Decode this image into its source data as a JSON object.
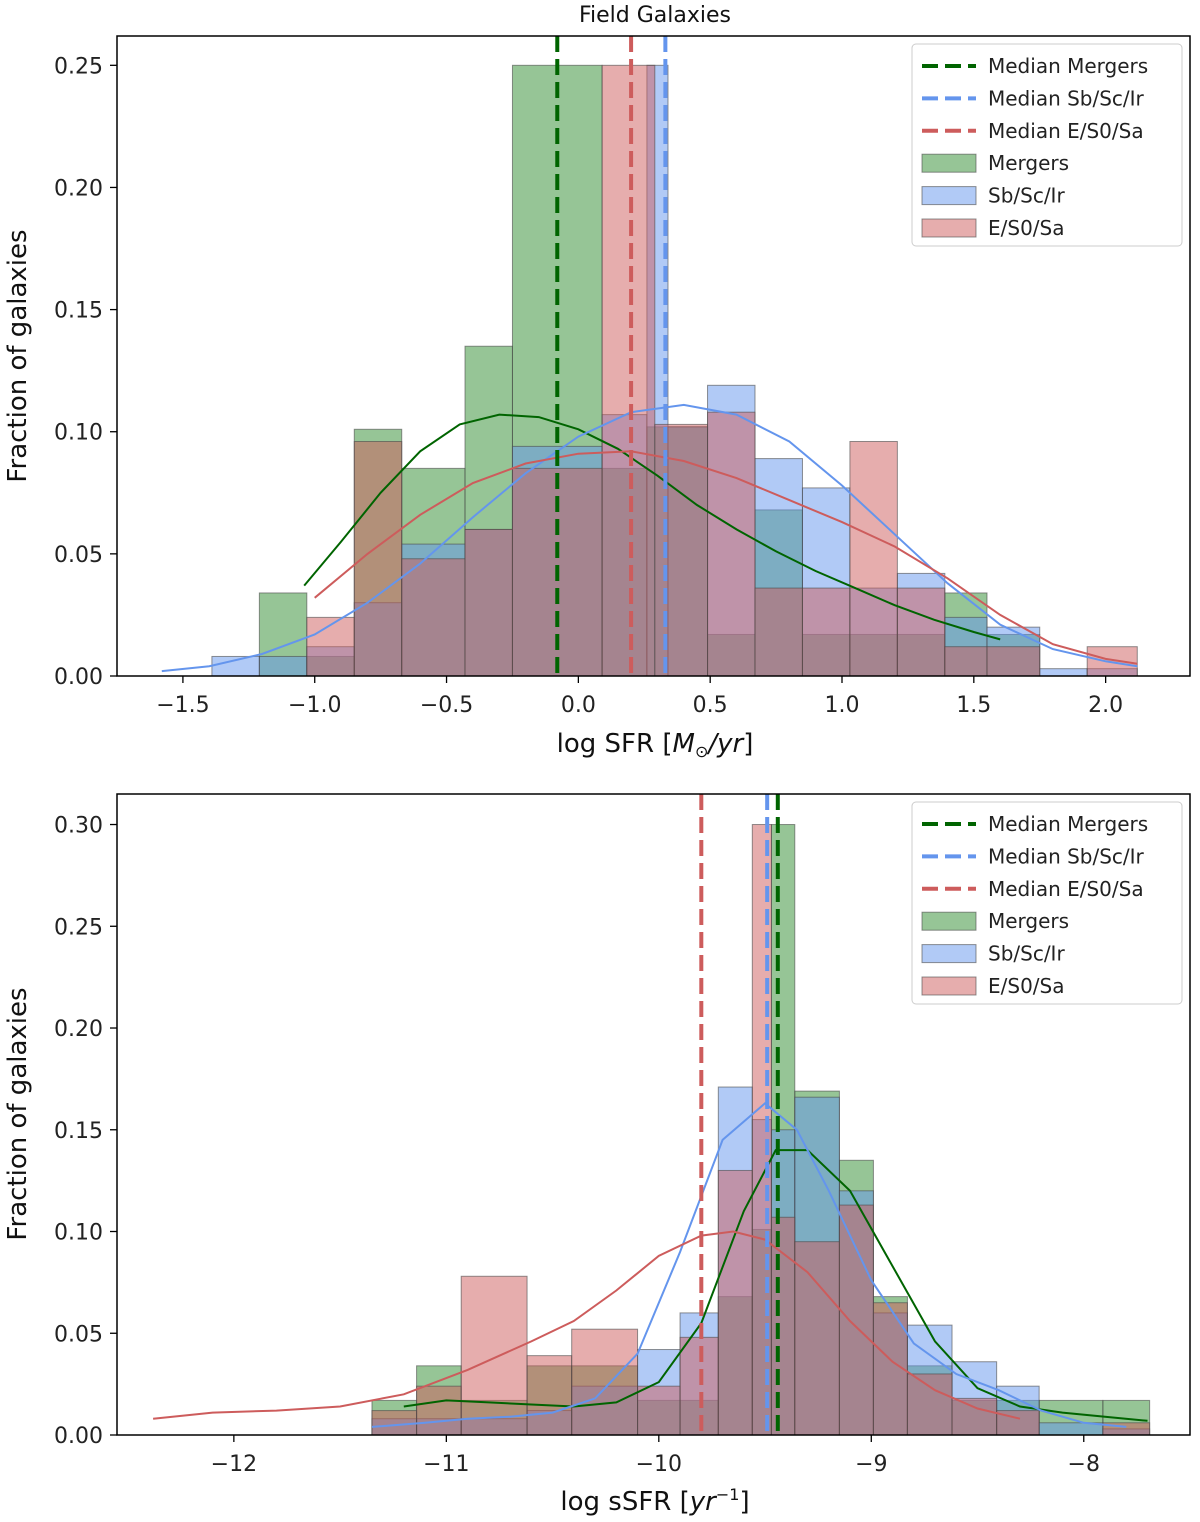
{
  "figure_title": "Field Galaxies",
  "colors": {
    "mergers_fill": "#2e8b2e",
    "mergers_line": "#006400",
    "sb_fill": "#6495ed",
    "sb_line": "#6495ed",
    "es0_fill": "#cd5c5c",
    "es0_line": "#cd5c5c",
    "bar_edge": "#4a4a4a"
  },
  "legend_labels": [
    "Median Mergers",
    "Median Sb/Sc/Ir",
    "Median E/S0/Sa",
    "Mergers",
    "Sb/Sc/Ir",
    "E/S0/Sa"
  ],
  "chart_data": [
    {
      "type": "bar",
      "title": "Field Galaxies",
      "xlabel": "log SFR [M_⊙/yr]",
      "ylabel": "Fraction of galaxies",
      "xlim": [
        -1.75,
        2.32
      ],
      "ylim": [
        0,
        0.262
      ],
      "xticks": [
        -1.5,
        -1.0,
        -0.5,
        0.0,
        0.5,
        1.0,
        1.5,
        2.0
      ],
      "xtick_labels": [
        "−1.5",
        "−1.0",
        "−0.5",
        "0.0",
        "0.5",
        "1.0",
        "1.5",
        "2.0"
      ],
      "yticks": [
        0.0,
        0.05,
        0.1,
        0.15,
        0.2,
        0.25
      ],
      "ytick_labels": [
        "0.00",
        "0.05",
        "0.10",
        "0.15",
        "0.20",
        "0.25"
      ],
      "legend_position": "upper right",
      "series": [
        {
          "name": "Mergers",
          "color_key": "mergers",
          "bins": [
            [
              -1.21,
              -1.03,
              0.034
            ],
            [
              -1.03,
              -0.85,
              0.008
            ],
            [
              -0.85,
              -0.67,
              0.101
            ],
            [
              -0.67,
              -0.43,
              0.085
            ],
            [
              -0.43,
              -0.25,
              0.135
            ],
            [
              -0.25,
              0.09,
              0.25
            ],
            [
              0.09,
              0.26,
              0.085
            ],
            [
              0.26,
              0.49,
              0.102
            ],
            [
              0.49,
              0.67,
              0.017
            ],
            [
              0.67,
              0.85,
              0.068
            ],
            [
              0.85,
              1.03,
              0.017
            ],
            [
              1.03,
              1.21,
              0.017
            ],
            [
              1.21,
              1.39,
              0.017
            ],
            [
              1.39,
              1.55,
              0.034
            ],
            [
              1.55,
              1.75,
              0.017
            ]
          ],
          "kde_x": [
            -1.04,
            -0.9,
            -0.75,
            -0.6,
            -0.45,
            -0.3,
            -0.15,
            0.0,
            0.15,
            0.3,
            0.45,
            0.6,
            0.75,
            0.9,
            1.05,
            1.2,
            1.35,
            1.5,
            1.6
          ],
          "kde_y": [
            0.037,
            0.055,
            0.075,
            0.092,
            0.103,
            0.107,
            0.106,
            0.101,
            0.093,
            0.082,
            0.07,
            0.06,
            0.051,
            0.043,
            0.036,
            0.029,
            0.023,
            0.018,
            0.015
          ],
          "median": -0.08
        },
        {
          "name": "Sb/Sc/Ir",
          "color_key": "sb",
          "bins": [
            [
              -1.39,
              -1.21,
              0.008
            ],
            [
              -1.21,
              -1.03,
              0.008
            ],
            [
              -1.03,
              -0.85,
              0.012
            ],
            [
              -0.85,
              -0.67,
              0.03
            ],
            [
              -0.67,
              -0.43,
              0.054
            ],
            [
              -0.43,
              -0.25,
              0.06
            ],
            [
              -0.25,
              0.09,
              0.094
            ],
            [
              0.09,
              0.26,
              0.107
            ],
            [
              0.26,
              0.34,
              0.25
            ],
            [
              0.34,
              0.49,
              0.102
            ],
            [
              0.49,
              0.67,
              0.119
            ],
            [
              0.67,
              0.85,
              0.089
            ],
            [
              0.85,
              1.03,
              0.077
            ],
            [
              1.03,
              1.21,
              0.036
            ],
            [
              1.21,
              1.39,
              0.042
            ],
            [
              1.39,
              1.55,
              0.024
            ],
            [
              1.55,
              1.75,
              0.02
            ],
            [
              1.75,
              1.93,
              0.003
            ],
            [
              1.93,
              2.12,
              0.003
            ]
          ],
          "kde_x": [
            -1.58,
            -1.4,
            -1.2,
            -1.0,
            -0.8,
            -0.6,
            -0.4,
            -0.2,
            0.0,
            0.2,
            0.4,
            0.6,
            0.8,
            1.0,
            1.2,
            1.4,
            1.6,
            1.8,
            2.0,
            2.12
          ],
          "kde_y": [
            0.002,
            0.004,
            0.009,
            0.017,
            0.03,
            0.046,
            0.065,
            0.083,
            0.098,
            0.108,
            0.111,
            0.107,
            0.096,
            0.078,
            0.058,
            0.038,
            0.021,
            0.011,
            0.006,
            0.004
          ],
          "median": 0.33
        },
        {
          "name": "E/S0/Sa",
          "color_key": "es0",
          "bins": [
            [
              -1.03,
              -0.85,
              0.024
            ],
            [
              -0.85,
              -0.67,
              0.096
            ],
            [
              -0.67,
              -0.43,
              0.048
            ],
            [
              -0.43,
              -0.25,
              0.06
            ],
            [
              -0.25,
              0.09,
              0.085
            ],
            [
              0.09,
              0.29,
              0.25
            ],
            [
              0.29,
              0.49,
              0.103
            ],
            [
              0.49,
              0.67,
              0.108
            ],
            [
              0.67,
              0.85,
              0.036
            ],
            [
              0.85,
              1.03,
              0.036
            ],
            [
              1.03,
              1.21,
              0.096
            ],
            [
              1.21,
              1.39,
              0.036
            ],
            [
              1.39,
              1.55,
              0.012
            ],
            [
              1.55,
              1.75,
              0.012
            ],
            [
              1.93,
              2.12,
              0.012
            ]
          ],
          "kde_x": [
            -1.0,
            -0.8,
            -0.6,
            -0.4,
            -0.2,
            0.0,
            0.2,
            0.4,
            0.6,
            0.8,
            1.0,
            1.2,
            1.4,
            1.6,
            1.8,
            2.0,
            2.12
          ],
          "kde_y": [
            0.032,
            0.05,
            0.066,
            0.079,
            0.087,
            0.091,
            0.092,
            0.088,
            0.081,
            0.072,
            0.063,
            0.053,
            0.04,
            0.025,
            0.013,
            0.007,
            0.005
          ],
          "median": 0.2
        }
      ]
    },
    {
      "type": "bar",
      "title": "",
      "xlabel": "log sSFR [yr⁻¹]",
      "ylabel": "Fraction of galaxies",
      "xlim": [
        -12.55,
        -7.5
      ],
      "ylim": [
        0,
        0.315
      ],
      "xticks": [
        -12,
        -11,
        -10,
        -9,
        -8
      ],
      "xtick_labels": [
        "−12",
        "−11",
        "−10",
        "−9",
        "−8"
      ],
      "yticks": [
        0.0,
        0.05,
        0.1,
        0.15,
        0.2,
        0.25,
        0.3
      ],
      "ytick_labels": [
        "0.00",
        "0.05",
        "0.10",
        "0.15",
        "0.20",
        "0.25",
        "0.30"
      ],
      "legend_position": "upper right",
      "series": [
        {
          "name": "Mergers",
          "color_key": "mergers",
          "bins": [
            [
              -11.35,
              -11.14,
              0.017
            ],
            [
              -11.14,
              -10.93,
              0.034
            ],
            [
              -10.93,
              -10.62,
              0.017
            ],
            [
              -10.62,
              -10.41,
              0.034
            ],
            [
              -10.41,
              -10.1,
              0.034
            ],
            [
              -10.1,
              -9.9,
              0.017
            ],
            [
              -9.9,
              -9.72,
              0.017
            ],
            [
              -9.72,
              -9.56,
              0.068
            ],
            [
              -9.56,
              -9.47,
              0.101
            ],
            [
              -9.47,
              -9.36,
              0.3
            ],
            [
              -9.36,
              -9.15,
              0.169
            ],
            [
              -9.15,
              -8.99,
              0.135
            ],
            [
              -8.99,
              -8.83,
              0.068
            ],
            [
              -8.83,
              -8.62,
              0.034
            ],
            [
              -8.62,
              -8.41,
              0.017
            ],
            [
              -8.41,
              -8.21,
              0.017
            ],
            [
              -8.21,
              -7.91,
              0.017
            ],
            [
              -7.91,
              -7.69,
              0.017
            ]
          ],
          "kde_x": [
            -11.2,
            -11.0,
            -10.8,
            -10.6,
            -10.4,
            -10.2,
            -10.0,
            -9.8,
            -9.6,
            -9.45,
            -9.3,
            -9.1,
            -8.9,
            -8.7,
            -8.5,
            -8.3,
            -8.1,
            -7.9,
            -7.7
          ],
          "kde_y": [
            0.014,
            0.017,
            0.016,
            0.015,
            0.014,
            0.016,
            0.026,
            0.055,
            0.11,
            0.14,
            0.14,
            0.12,
            0.083,
            0.046,
            0.023,
            0.014,
            0.011,
            0.009,
            0.007
          ],
          "median": -9.44
        },
        {
          "name": "Sb/Sc/Ir",
          "color_key": "sb",
          "bins": [
            [
              -11.35,
              -11.14,
              0.008
            ],
            [
              -11.14,
              -10.93,
              0.008
            ],
            [
              -10.93,
              -10.62,
              0.008
            ],
            [
              -10.62,
              -10.41,
              0.012
            ],
            [
              -10.41,
              -10.1,
              0.024
            ],
            [
              -10.1,
              -9.9,
              0.042
            ],
            [
              -9.9,
              -9.72,
              0.06
            ],
            [
              -9.72,
              -9.56,
              0.171
            ],
            [
              -9.56,
              -9.47,
              0.155
            ],
            [
              -9.47,
              -9.36,
              0.15
            ],
            [
              -9.36,
              -9.15,
              0.166
            ],
            [
              -9.15,
              -8.99,
              0.12
            ],
            [
              -8.99,
              -8.83,
              0.06
            ],
            [
              -8.83,
              -8.62,
              0.054
            ],
            [
              -8.62,
              -8.41,
              0.036
            ],
            [
              -8.41,
              -8.21,
              0.024
            ],
            [
              -8.21,
              -7.91,
              0.006
            ],
            [
              -7.91,
              -7.69,
              0.003
            ]
          ],
          "kde_x": [
            -11.35,
            -11.1,
            -10.9,
            -10.7,
            -10.5,
            -10.3,
            -10.1,
            -9.9,
            -9.7,
            -9.5,
            -9.35,
            -9.2,
            -9.0,
            -8.8,
            -8.6,
            -8.4,
            -8.2,
            -8.0,
            -7.8
          ],
          "kde_y": [
            0.004,
            0.006,
            0.008,
            0.009,
            0.011,
            0.018,
            0.04,
            0.09,
            0.145,
            0.163,
            0.15,
            0.12,
            0.076,
            0.045,
            0.03,
            0.022,
            0.012,
            0.006,
            0.004
          ],
          "median": -9.49
        },
        {
          "name": "E/S0/Sa",
          "color_key": "es0",
          "bins": [
            [
              -11.35,
              -11.14,
              0.012
            ],
            [
              -11.14,
              -10.93,
              0.024
            ],
            [
              -10.93,
              -10.62,
              0.078
            ],
            [
              -10.62,
              -10.41,
              0.039
            ],
            [
              -10.41,
              -10.1,
              0.052
            ],
            [
              -10.1,
              -9.9,
              0.024
            ],
            [
              -9.9,
              -9.72,
              0.048
            ],
            [
              -9.72,
              -9.56,
              0.13
            ],
            [
              -9.56,
              -9.47,
              0.3
            ],
            [
              -9.47,
              -9.36,
              0.107
            ],
            [
              -9.36,
              -9.15,
              0.095
            ],
            [
              -9.15,
              -8.99,
              0.113
            ],
            [
              -8.99,
              -8.83,
              0.065
            ],
            [
              -8.83,
              -8.62,
              0.03
            ],
            [
              -8.62,
              -8.41,
              0.018
            ],
            [
              -8.41,
              -8.21,
              0.012
            ],
            [
              -7.91,
              -7.69,
              0.006
            ]
          ],
          "kde_x": [
            -12.38,
            -12.1,
            -11.8,
            -11.5,
            -11.2,
            -10.9,
            -10.6,
            -10.4,
            -10.2,
            -10.0,
            -9.8,
            -9.65,
            -9.5,
            -9.3,
            -9.1,
            -8.9,
            -8.7,
            -8.5,
            -8.3
          ],
          "kde_y": [
            0.008,
            0.011,
            0.012,
            0.014,
            0.02,
            0.032,
            0.046,
            0.056,
            0.071,
            0.088,
            0.098,
            0.1,
            0.096,
            0.08,
            0.056,
            0.036,
            0.022,
            0.013,
            0.008
          ],
          "median": -9.8
        }
      ]
    }
  ]
}
